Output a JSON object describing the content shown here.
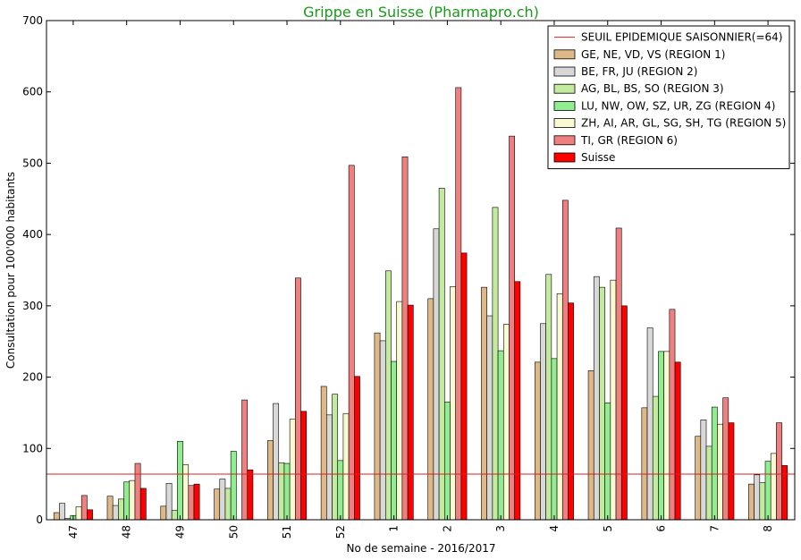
{
  "chart_data": {
    "type": "bar",
    "title": "Grippe en Suisse (Pharmapro.ch)",
    "xlabel": "No de semaine - 2016/2017",
    "ylabel": "Consultation pour 100'000 habitants",
    "ylim": [
      0,
      700
    ],
    "yticks": [
      "0",
      "100",
      "200",
      "300",
      "400",
      "500",
      "600",
      "700"
    ],
    "categories": [
      "47",
      "48",
      "49",
      "50",
      "51",
      "52",
      "1",
      "2",
      "3",
      "4",
      "5",
      "6",
      "7",
      "8"
    ],
    "threshold": {
      "name": "SEUIL EPIDEMIQUE SAISONNIER(=64)",
      "value": 64,
      "color": "#d62020"
    },
    "series": [
      {
        "name": "GE, NE, VD, VS (REGION 1)",
        "color": "#deb887",
        "values": [
          10,
          33,
          19,
          43,
          111,
          187,
          262,
          310,
          326,
          221,
          209,
          157,
          117,
          50
        ]
      },
      {
        "name": "BE, FR, JU (REGION 2)",
        "color": "#d8d8d8",
        "values": [
          23,
          20,
          51,
          57,
          163,
          147,
          251,
          408,
          286,
          275,
          341,
          269,
          140,
          63
        ]
      },
      {
        "name": "AG, BL, BS, SO (REGION 3)",
        "color": "#c2eba0",
        "values": [
          2,
          29,
          13,
          44,
          80,
          176,
          349,
          465,
          438,
          344,
          326,
          173,
          103,
          52
        ]
      },
      {
        "name": "LU, NW, OW, SZ, UR, ZG (REGION 4)",
        "color": "#90ee90",
        "values": [
          6,
          53,
          110,
          96,
          79,
          83,
          222,
          165,
          237,
          226,
          164,
          236,
          158,
          82
        ]
      },
      {
        "name": "ZH, AI, AR, GL, SG, SH, TG (REGION 5)",
        "color": "#fafad2",
        "values": [
          18,
          55,
          77,
          0,
          141,
          149,
          306,
          327,
          274,
          317,
          336,
          236,
          134,
          93
        ]
      },
      {
        "name": "TI, GR (REGION 6)",
        "color": "#f08080",
        "values": [
          34,
          79,
          48,
          168,
          339,
          497,
          509,
          606,
          538,
          448,
          409,
          295,
          171,
          136
        ]
      },
      {
        "name": "Suisse",
        "color": "#ff0000",
        "values": [
          14,
          44,
          50,
          70,
          152,
          201,
          301,
          374,
          334,
          304,
          300,
          221,
          136,
          76
        ]
      }
    ]
  }
}
